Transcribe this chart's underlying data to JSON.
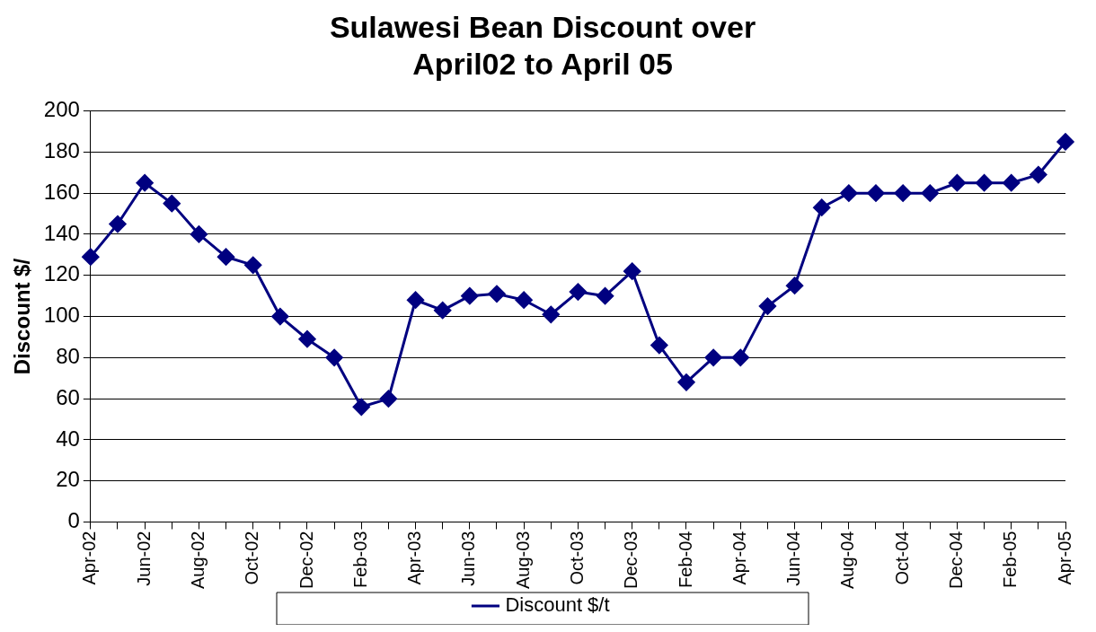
{
  "chart_data": {
    "type": "line",
    "title": "Sulawesi Bean Discount over\nApril02 to April 05",
    "ylabel": "Discount $/",
    "categories": [
      "Apr-02",
      null,
      "Jun-02",
      null,
      "Aug-02",
      null,
      "Oct-02",
      null,
      "Dec-02",
      null,
      "Feb-03",
      null,
      "Apr-03",
      null,
      "Jun-03",
      null,
      "Aug-03",
      null,
      "Oct-03",
      null,
      "Dec-03",
      null,
      "Feb-04",
      null,
      "Apr-04",
      null,
      "Jun-04",
      null,
      "Aug-04",
      null,
      "Oct-04",
      null,
      "Dec-04",
      null,
      "Feb-05",
      null,
      "Apr-05"
    ],
    "series": [
      {
        "name": "Discount $/t",
        "color": "#000080",
        "values": [
          129,
          145,
          165,
          155,
          140,
          129,
          125,
          100,
          89,
          80,
          56,
          60,
          108,
          103,
          110,
          111,
          108,
          101,
          112,
          110,
          122,
          86,
          68,
          80,
          80,
          105,
          115,
          153,
          160,
          160,
          160,
          160,
          165,
          165,
          165,
          169,
          185
        ]
      }
    ],
    "ylim": [
      0,
      200
    ],
    "yticks": [
      0,
      20,
      40,
      60,
      80,
      100,
      120,
      140,
      160,
      180,
      200
    ],
    "grid": "y",
    "legend": "bottom",
    "marker": "diamond",
    "line_style": "solid"
  }
}
